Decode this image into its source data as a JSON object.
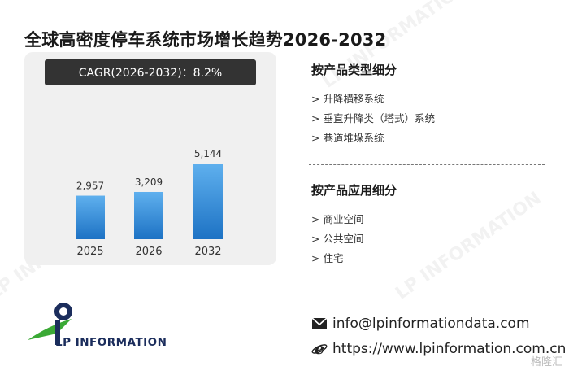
{
  "title": "全球高密度停车系统市场增长趋势2026-2032",
  "cagr_text": "CAGR(2026-2032)：8.2%",
  "chart_data": {
    "type": "bar",
    "categories": [
      "2025",
      "2026",
      "2032"
    ],
    "values": [
      2957,
      3209,
      5144
    ],
    "data_labels": [
      "2,957",
      "3,209",
      "5,144"
    ],
    "title": "",
    "xlabel": "",
    "ylabel": "",
    "ylim": [
      0,
      5144
    ],
    "grid": false,
    "bar_color_top": "#5fb0ee",
    "bar_color_bottom": "#1d72c4"
  },
  "segments": {
    "type": {
      "heading": "按产品类型细分",
      "items": [
        "> 升降横移系统",
        "> 垂直升降类（塔式）系统",
        "> 巷道堆垛系统"
      ]
    },
    "application": {
      "heading": "按产品应用细分",
      "items": [
        "> 商业空间",
        "> 公共空间",
        "> 住宅"
      ]
    }
  },
  "logo": {
    "text": "LP INFORMATION"
  },
  "contact": {
    "email": "info@lpinformationdata.com",
    "website": "https://www.lpinformation.com.cn"
  },
  "corner_badge": "格隆汇",
  "watermark": "LP INFORMATION",
  "colors": {
    "cagr_bg": "#333333",
    "panel_bg": "#f0f0f0",
    "logo_navy": "#1b2d5c",
    "logo_green": "#3aa935"
  }
}
